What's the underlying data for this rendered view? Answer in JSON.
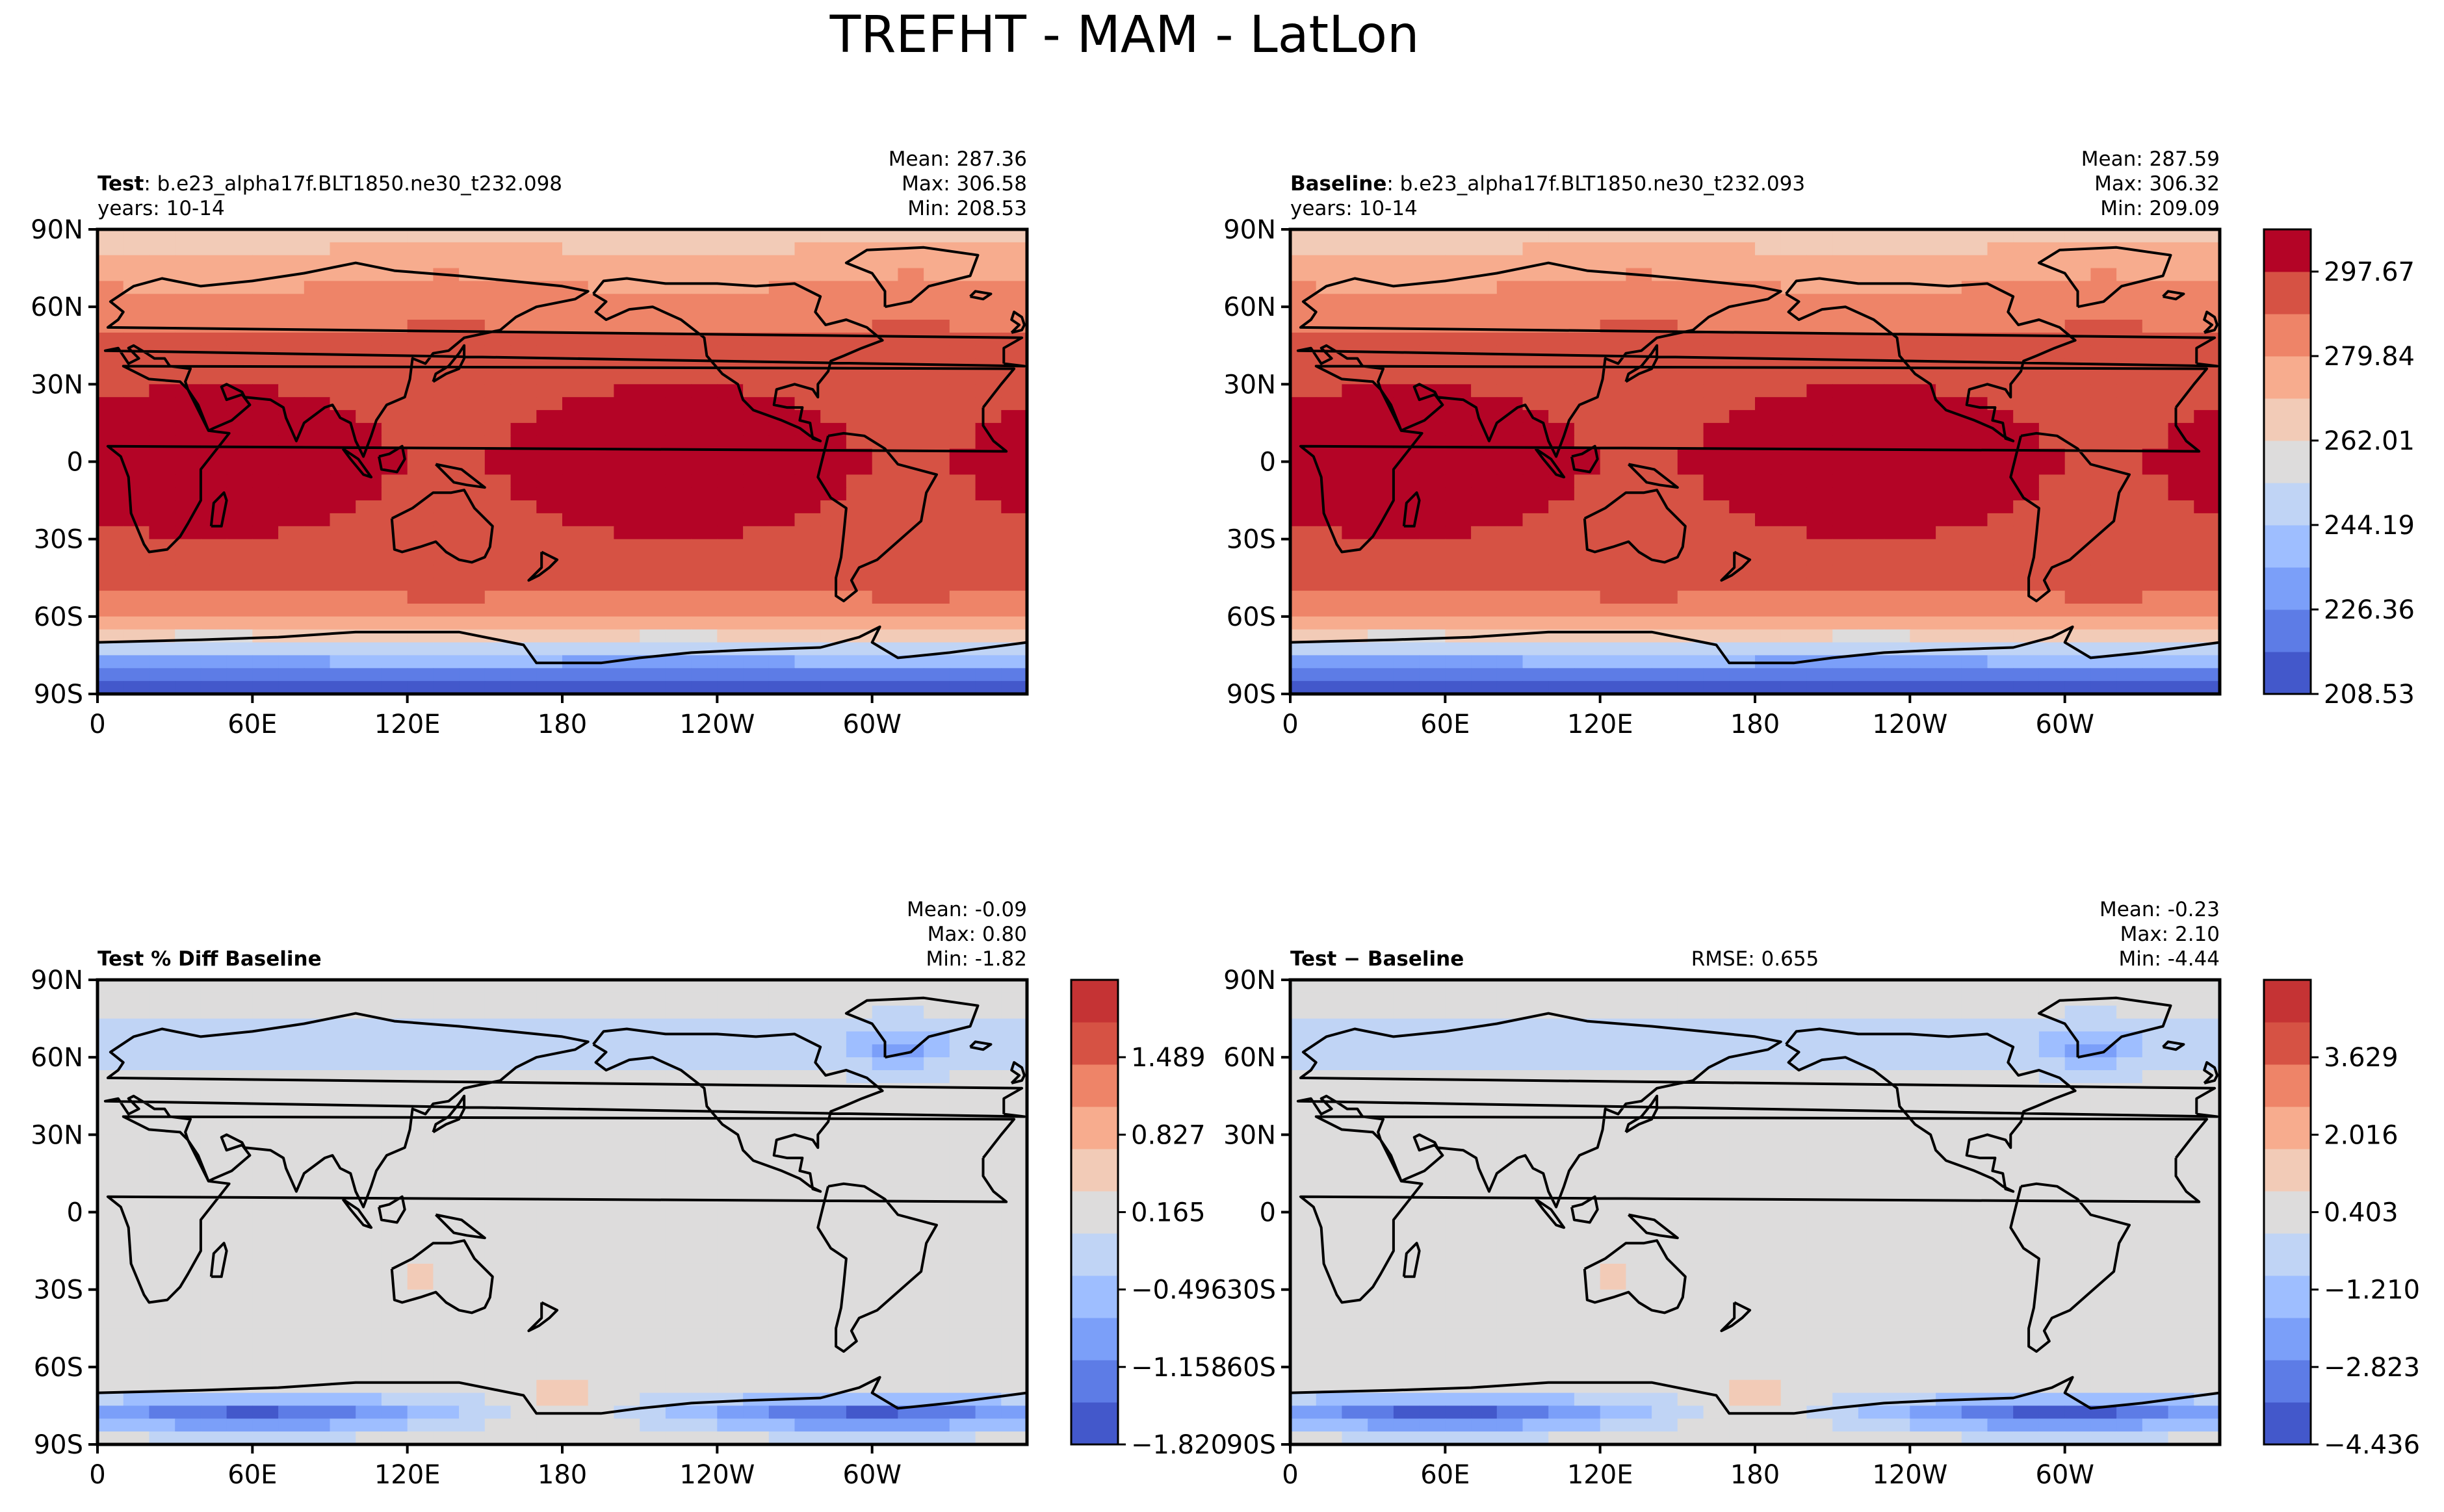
{
  "figure": {
    "title": "TREFHT - MAM - LatLon"
  },
  "chart_data": [
    {
      "type": "heatmap",
      "id": "test",
      "label_bold": "Test",
      "label_rest": ": b.e23_alpha17f.BLT1850.ne30_t232.098",
      "years": "years: 10-14",
      "stats": [
        "Mean: 287.36",
        "Max: 306.58",
        "Min: 208.53"
      ],
      "rmse": "",
      "xticks": [
        "0",
        "60E",
        "120E",
        "180",
        "120W",
        "60W"
      ],
      "yticks": [
        "90N",
        "60N",
        "30N",
        "0",
        "30S",
        "60S",
        "90S"
      ],
      "colorbar": null
    },
    {
      "type": "heatmap",
      "id": "baseline",
      "label_bold": "Baseline",
      "label_rest": ": b.e23_alpha17f.BLT1850.ne30_t232.093",
      "years": "years: 10-14",
      "stats": [
        "Mean: 287.59",
        "Max: 306.32",
        "Min: 209.09"
      ],
      "rmse": "",
      "xticks": [
        "0",
        "60E",
        "120E",
        "180",
        "120W",
        "60W"
      ],
      "yticks": [
        "90N",
        "60N",
        "30N",
        "0",
        "30S",
        "60S",
        "90S"
      ],
      "colorbar": {
        "ticks": [
          "297.67",
          "279.84",
          "262.01",
          "244.19",
          "226.36",
          "208.53"
        ],
        "range": [
          208.53,
          306.58
        ],
        "tick_values": [
          297.67,
          279.84,
          262.01,
          244.19,
          226.36,
          208.53
        ]
      }
    },
    {
      "type": "heatmap",
      "id": "pctdiff",
      "label_bold": "Test % Diff Baseline",
      "label_rest": "",
      "years": "",
      "stats": [
        "Mean: -0.09",
        "Max:  0.80",
        "Min: -1.82"
      ],
      "rmse": "",
      "xticks": [
        "0",
        "60E",
        "120E",
        "180",
        "120W",
        "60W"
      ],
      "yticks": [
        "90N",
        "60N",
        "30N",
        "0",
        "30S",
        "60S",
        "90S"
      ],
      "colorbar": {
        "ticks": [
          "1.489",
          "0.827",
          "0.165",
          "−0.496",
          "−1.158",
          "−1.820"
        ],
        "range": [
          -1.82,
          2.15
        ],
        "tick_values": [
          1.489,
          0.827,
          0.165,
          -0.496,
          -1.158,
          -1.82
        ]
      }
    },
    {
      "type": "heatmap",
      "id": "diff",
      "label_bold": "Test − Baseline",
      "label_rest": "",
      "years": "",
      "stats": [
        "Mean: -0.23",
        "Max:  2.10",
        "Min: -4.44"
      ],
      "rmse": "RMSE: 0.655",
      "xticks": [
        "0",
        "60E",
        "120E",
        "180",
        "120W",
        "60W"
      ],
      "yticks": [
        "90N",
        "60N",
        "30N",
        "0",
        "30S",
        "60S",
        "90S"
      ],
      "colorbar": {
        "ticks": [
          "3.629",
          "2.016",
          "0.403",
          "−1.210",
          "−2.823",
          "−4.436"
        ],
        "range": [
          -4.436,
          5.242
        ],
        "tick_values": [
          3.629,
          2.016,
          0.403,
          -1.21,
          -2.823,
          -4.436
        ]
      }
    }
  ],
  "palette": {
    "abs": [
      "#4358cb",
      "#5d7ce6",
      "#7b9ff9",
      "#9ebeff",
      "#c0d4f5",
      "#dddcdc",
      "#f2cbb7",
      "#f7ac8e",
      "#ee8468",
      "#d65244",
      "#b40426"
    ],
    "diff": [
      "#4358cb",
      "#5d7ce6",
      "#7b9ff9",
      "#9ebeff",
      "#c0d4f5",
      "#dddcdc",
      "#f2cbb7",
      "#f7ac8e",
      "#ee8468",
      "#d65244",
      "#c53334"
    ],
    "land_outline": "#000000"
  }
}
